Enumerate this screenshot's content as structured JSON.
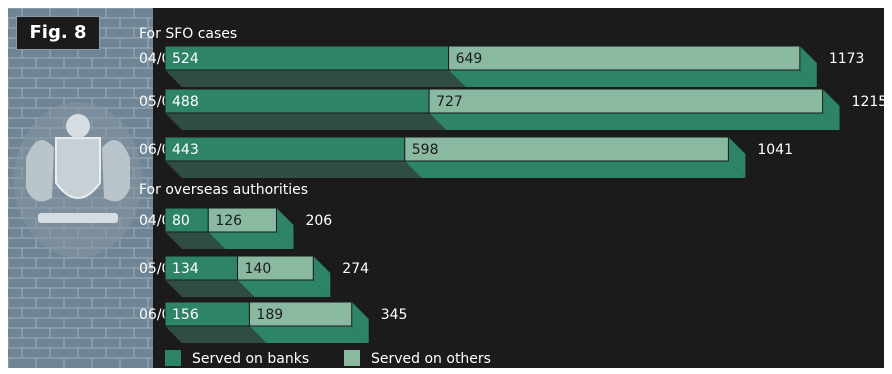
{
  "figure_label": "Fig. 8",
  "colors": {
    "background": "#1b1b1b",
    "banks": "#2e8466",
    "banks_side": "#1f5e48",
    "others": "#8ab9a2",
    "others_side": "#65927d",
    "bottom": "#2f4d42",
    "text": "#ffffff"
  },
  "chart_data": {
    "type": "bar",
    "orientation": "horizontal",
    "stacked": true,
    "groups": [
      {
        "title": "For SFO cases",
        "rows": [
          {
            "label": "04/05",
            "banks": 524,
            "others": 649,
            "total": 1173
          },
          {
            "label": "05/06",
            "banks": 488,
            "others": 727,
            "total": 1215
          },
          {
            "label": "06/07",
            "banks": 443,
            "others": 598,
            "total": 1041
          }
        ]
      },
      {
        "title": "For overseas authorities",
        "rows": [
          {
            "label": "04/05",
            "banks": 80,
            "others": 126,
            "total": 206
          },
          {
            "label": "05/06",
            "banks": 134,
            "others": 140,
            "total": 274
          },
          {
            "label": "06/07",
            "banks": 156,
            "others": 189,
            "total": 345
          }
        ]
      }
    ],
    "series": [
      {
        "name": "Served on banks",
        "key": "banks"
      },
      {
        "name": "Served on others",
        "key": "others"
      }
    ],
    "legend_position": "bottom",
    "grid": false
  }
}
